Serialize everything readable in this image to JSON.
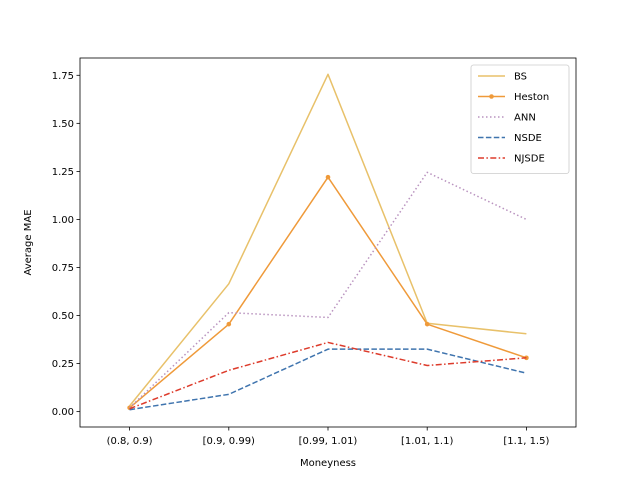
{
  "chart_data": {
    "type": "line",
    "title": "",
    "xlabel": "Moneyness",
    "ylabel": "Average MAE",
    "categories": [
      "(0.8, 0.9)",
      "[0.9, 0.99)",
      "[0.99, 1.01)",
      "[1.01, 1.1)",
      "[1.1, 1.5)"
    ],
    "ylim": [
      -0.08,
      1.84
    ],
    "yticks": [
      0.0,
      0.25,
      0.5,
      0.75,
      1.0,
      1.25,
      1.5,
      1.75
    ],
    "ytick_labels": [
      "0.00",
      "0.25",
      "0.50",
      "0.75",
      "1.00",
      "1.25",
      "1.50",
      "1.75"
    ],
    "grid": false,
    "legend_position": "top-right",
    "series": [
      {
        "name": "BS",
        "values": [
          0.03,
          0.665,
          1.755,
          0.46,
          0.405
        ],
        "color": "#e8c16a",
        "dash": "solid",
        "marker": false
      },
      {
        "name": "Heston",
        "values": [
          0.02,
          0.455,
          1.22,
          0.455,
          0.28
        ],
        "color": "#ef9a3a",
        "dash": "solid",
        "marker": true
      },
      {
        "name": "ANN",
        "values": [
          0.02,
          0.515,
          0.49,
          1.245,
          1.0
        ],
        "color": "#b993bf",
        "dash": "dotted",
        "marker": false
      },
      {
        "name": "NSDE",
        "values": [
          0.01,
          0.09,
          0.325,
          0.325,
          0.2
        ],
        "color": "#3f74ae",
        "dash": "dashed",
        "marker": false
      },
      {
        "name": "NJSDE",
        "values": [
          0.015,
          0.215,
          0.36,
          0.24,
          0.28
        ],
        "color": "#dd3b2b",
        "dash": "dashdot",
        "marker": false
      }
    ]
  }
}
